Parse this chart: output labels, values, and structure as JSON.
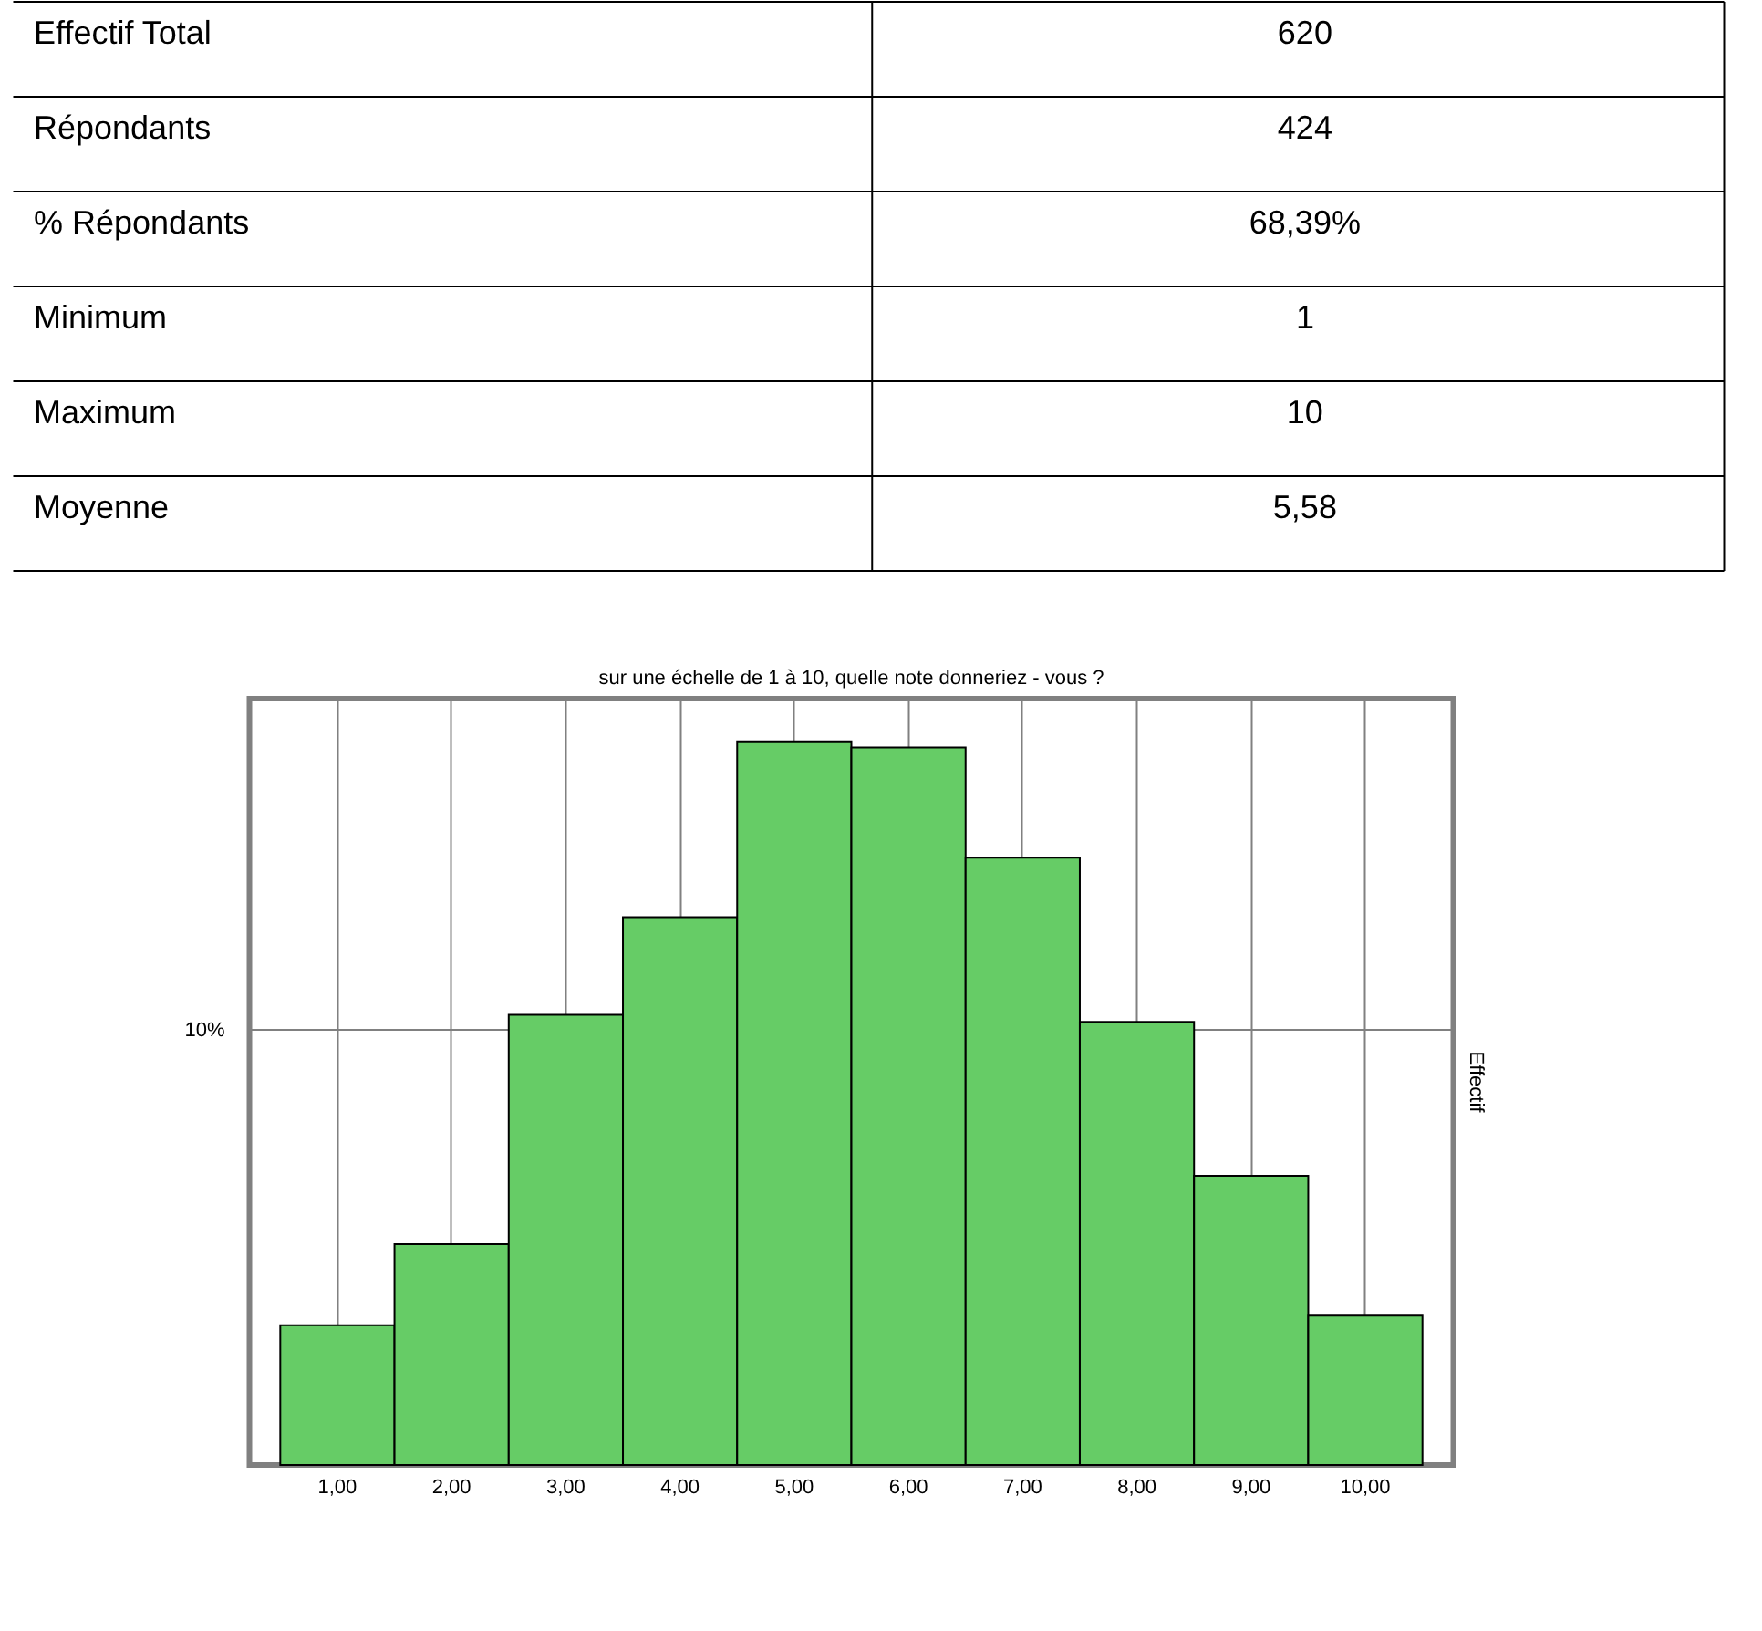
{
  "chart_data": [
    {
      "type": "other",
      "annotations": [
        "Effectif Total",
        "620",
        "Répondants",
        "424",
        "% Répondants",
        "68,39%",
        "Minimum",
        "1",
        "Maximum",
        "10",
        "Moyenne",
        "5,58"
      ]
    },
    {
      "type": "bar",
      "title": "sur une échelle de 1 à 10, quelle note donneriez - vous ?",
      "ylabel": "Effectif",
      "categories": [
        "1,00",
        "2,00",
        "3,00",
        "4,00",
        "5,00",
        "6,00",
        "7,00",
        "8,00",
        "9,00",
        "10,00"
      ],
      "values": [
        3.21,
        5.07,
        10.34,
        12.58,
        16.62,
        16.48,
        13.95,
        10.18,
        6.64,
        3.43
      ],
      "ylim": [
        0,
        17.6
      ],
      "yticks": [
        {
          "value": 10,
          "label": "10%"
        }
      ],
      "color": "#66cc66",
      "grid": true
    }
  ]
}
